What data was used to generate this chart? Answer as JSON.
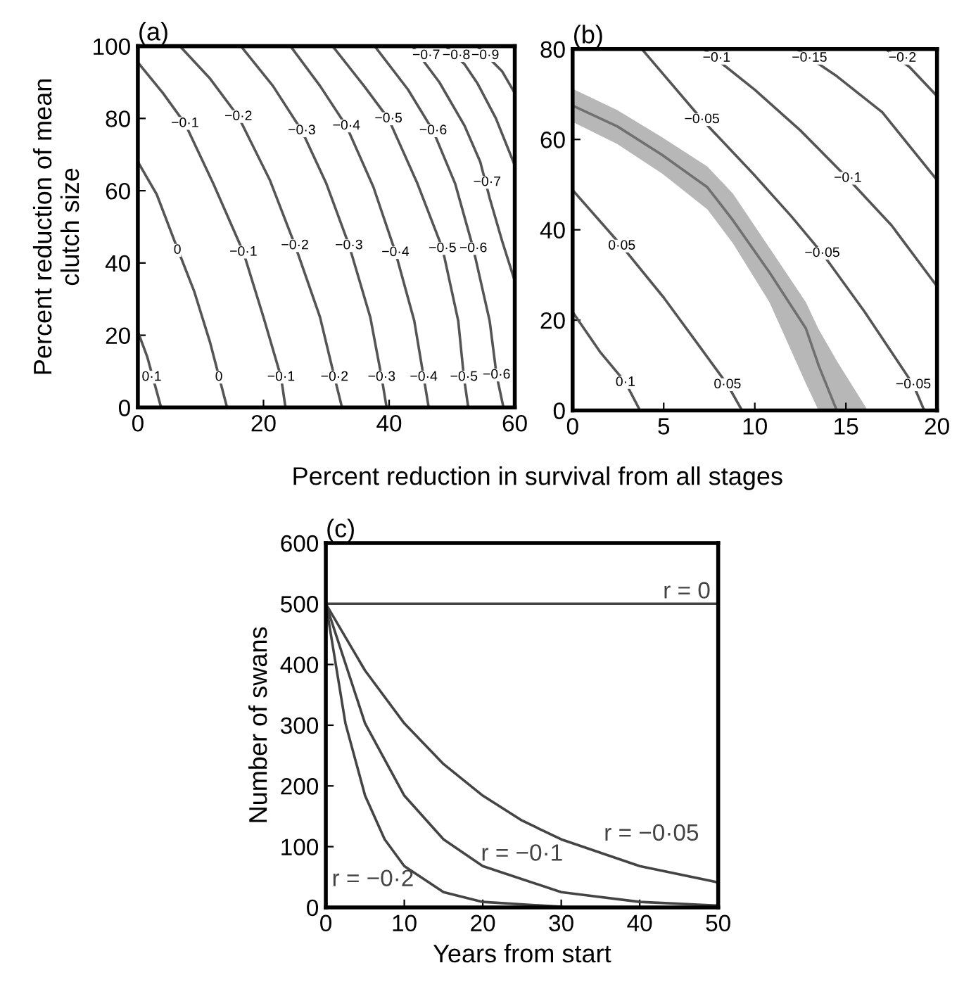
{
  "chart_data": [
    {
      "type": "line",
      "title": "(a)",
      "xlabel": "Percent reduction in survival from all stages",
      "ylabel": "Percent reduction of mean\nclutch size",
      "xlim": [
        0,
        60
      ],
      "ylim": [
        0,
        100
      ],
      "xticks": [
        0,
        20,
        40,
        60
      ],
      "yticks": [
        0,
        20,
        40,
        60,
        80,
        100
      ],
      "series": [
        {
          "color": "#555555",
          "x": [
            0,
            1.5,
            3.7
          ],
          "values": [
            21,
            14,
            0
          ]
        },
        {
          "color": "#555555",
          "x": [
            0,
            3,
            6.3,
            9,
            11.5,
            13,
            14.2
          ],
          "values": [
            68,
            59,
            44,
            32,
            18,
            8,
            0
          ]
        },
        {
          "color": "#555555",
          "x": [
            0,
            4,
            7.5,
            12,
            16.8,
            20,
            22.8,
            23.5
          ],
          "values": [
            95.5,
            87,
            78.6,
            62,
            43,
            25,
            8.4,
            0
          ]
        },
        {
          "color": "#555555",
          "x": [
            6.7,
            11.5,
            16,
            21,
            25,
            29,
            31.3,
            32.5
          ],
          "values": [
            100,
            91,
            80.5,
            63,
            45,
            25,
            8.4,
            0
          ]
        },
        {
          "color": "#555555",
          "x": [
            16.4,
            21.5,
            26.1,
            30,
            33.6,
            37,
            38.8,
            39.6
          ],
          "values": [
            100,
            89,
            76.6,
            62,
            45,
            25,
            8.4,
            0
          ]
        },
        {
          "color": "#555555",
          "x": [
            24.3,
            29,
            33.2,
            37.5,
            41,
            44,
            45.5,
            46.3
          ],
          "values": [
            100,
            89,
            77.9,
            61,
            43,
            24,
            8.4,
            0
          ]
        },
        {
          "color": "#555555",
          "x": [
            31,
            36,
            39.9,
            44.5,
            48.5,
            51,
            51.9,
            52.6
          ],
          "values": [
            100,
            89,
            79.9,
            62,
            44,
            24,
            8.4,
            0
          ]
        },
        {
          "color": "#555555",
          "x": [
            37.7,
            43,
            47,
            50.5,
            53.4,
            56,
            57.1,
            58.2
          ],
          "values": [
            100,
            88,
            76.6,
            62,
            44,
            24,
            9,
            0
          ]
        },
        {
          "color": "#555555",
          "x": [
            43.7,
            48,
            52,
            54.5,
            56,
            58,
            60
          ],
          "values": [
            100,
            90,
            78,
            68,
            58,
            46,
            35
          ]
        },
        {
          "color": "#555555",
          "x": [
            49,
            52,
            54.1,
            57,
            60
          ],
          "values": [
            100,
            95,
            89.6,
            80,
            67
          ]
        },
        {
          "color": "#555555",
          "x": [
            54,
            58,
            60
          ],
          "values": [
            100,
            93,
            87
          ]
        }
      ],
      "annotations": [
        {
          "text": "−0·7",
          "x": 45.9,
          "y": 97.4
        },
        {
          "text": "−0·8",
          "x": 50.7,
          "y": 97.4
        },
        {
          "text": "−0·9",
          "x": 55.3,
          "y": 97.4
        },
        {
          "text": "−0·1",
          "x": 7.5,
          "y": 78.6
        },
        {
          "text": "−0·2",
          "x": 16,
          "y": 80.5
        },
        {
          "text": "−0·3",
          "x": 26.1,
          "y": 76.6
        },
        {
          "text": "−0·4",
          "x": 33.2,
          "y": 77.9
        },
        {
          "text": "−0·5",
          "x": 39.9,
          "y": 79.9
        },
        {
          "text": "−0·6",
          "x": 47,
          "y": 76.6
        },
        {
          "text": "−0·7",
          "x": 55.6,
          "y": 62.3
        },
        {
          "text": "0",
          "x": 6.3,
          "y": 43.5
        },
        {
          "text": "−0·1",
          "x": 16.8,
          "y": 43
        },
        {
          "text": "−0·2",
          "x": 25,
          "y": 44.8
        },
        {
          "text": "−0·3",
          "x": 33.6,
          "y": 44.8
        },
        {
          "text": "−0·4",
          "x": 41,
          "y": 42.9
        },
        {
          "text": "−0·5",
          "x": 48.5,
          "y": 44
        },
        {
          "text": "−0·6",
          "x": 53.4,
          "y": 44
        },
        {
          "text": "0·1",
          "x": 2.2,
          "y": 8.4
        },
        {
          "text": "0",
          "x": 12.9,
          "y": 8.4
        },
        {
          "text": "−0·1",
          "x": 22.8,
          "y": 8.4
        },
        {
          "text": "−0·2",
          "x": 31.3,
          "y": 8.4
        },
        {
          "text": "−0·3",
          "x": 38.8,
          "y": 8.4
        },
        {
          "text": "−0·4",
          "x": 45.5,
          "y": 8.4
        },
        {
          "text": "−0·5",
          "x": 51.9,
          "y": 8.4
        },
        {
          "text": "−0·6",
          "x": 57.1,
          "y": 9
        }
      ]
    },
    {
      "type": "line",
      "title": "(b)",
      "xlim": [
        0,
        20
      ],
      "ylim": [
        0,
        80
      ],
      "xticks": [
        0,
        5,
        10,
        15,
        20
      ],
      "yticks": [
        0,
        20,
        40,
        60,
        80
      ],
      "series": [
        {
          "color": "#555555",
          "x": [
            0,
            1.5,
            2.9,
            3.7
          ],
          "values": [
            21.8,
            13,
            6.2,
            0
          ]
        },
        {
          "color": "#555555",
          "x": [
            0,
            2.7,
            5,
            7,
            8.5,
            9.3
          ],
          "values": [
            48.8,
            36.4,
            25,
            14,
            5.7,
            0
          ]
        },
        {
          "color": "#707070",
          "x": [
            0,
            2.45,
            4.9,
            7.4,
            8.8,
            10.8,
            12.8,
            13.5,
            14.5,
            16.2
          ],
          "values": [
            67.5,
            62.9,
            56.6,
            49.4,
            42.1,
            30.6,
            18.2,
            10,
            0,
            null
          ],
          "lower": [
            63.9,
            59,
            52.5,
            44.5,
            37,
            24,
            6,
            0,
            0,
            0
          ],
          "upper": [
            71.2,
            66.5,
            60.5,
            54,
            48,
            36,
            24,
            18,
            11,
            0
          ]
        },
        {
          "color": "#555555",
          "x": [
            3.8,
            7.1,
            10,
            12,
            13.7,
            16,
            18.7,
            19.3
          ],
          "values": [
            80,
            64.4,
            52,
            43,
            34.8,
            22,
            5.7,
            0
          ]
        },
        {
          "color": "#555555",
          "x": [
            7.2,
            10,
            12.5,
            15.1,
            17.5,
            20
          ],
          "values": [
            80,
            71,
            62,
            51.4,
            41,
            27.5
          ]
        },
        {
          "color": "#555555",
          "x": [
            12.3,
            14.5,
            17,
            20
          ],
          "values": [
            80,
            74,
            66,
            51
          ]
        },
        {
          "color": "#555555",
          "x": [
            17.2,
            18.5,
            20
          ],
          "values": [
            80,
            76,
            69.6
          ]
        }
      ],
      "annotations": [
        {
          "text": "−0·1",
          "x": 7.9,
          "y": 78
        },
        {
          "text": "−0·15",
          "x": 13,
          "y": 78
        },
        {
          "text": "−0·2",
          "x": 18.1,
          "y": 78
        },
        {
          "text": "−0·05",
          "x": 7.1,
          "y": 64.4
        },
        {
          "text": "−0·1",
          "x": 15.1,
          "y": 51.4
        },
        {
          "text": "0·05",
          "x": 2.7,
          "y": 36.4
        },
        {
          "text": "−0·05",
          "x": 13.7,
          "y": 34.8
        },
        {
          "text": "0·1",
          "x": 2.9,
          "y": 6.2
        },
        {
          "text": "0·05",
          "x": 8.5,
          "y": 5.7
        },
        {
          "text": "−0·05",
          "x": 18.7,
          "y": 5.7
        }
      ]
    },
    {
      "type": "line",
      "title": "(c)",
      "xlabel": "Years from start",
      "ylabel": "Number of swans",
      "xlim": [
        0,
        50
      ],
      "ylim": [
        0,
        600
      ],
      "xticks": [
        0,
        10,
        20,
        30,
        40,
        50
      ],
      "yticks": [
        0,
        100,
        200,
        300,
        400,
        500,
        600
      ],
      "series": [
        {
          "name": "r = 0",
          "color": "#444444",
          "x": [
            0,
            50
          ],
          "values": [
            500,
            500
          ]
        },
        {
          "name": "r = −0·05",
          "color": "#444444",
          "x": [
            0,
            5,
            10,
            15,
            20,
            25,
            30,
            40,
            50
          ],
          "values": [
            500,
            390,
            303,
            236,
            184,
            143,
            112,
            68,
            41
          ]
        },
        {
          "name": "r = −0·1",
          "color": "#444444",
          "x": [
            0,
            5,
            10,
            15,
            20,
            30,
            40,
            50
          ],
          "values": [
            500,
            303,
            184,
            112,
            68,
            25,
            9,
            3
          ]
        },
        {
          "name": "r = −0·2",
          "color": "#444444",
          "x": [
            0,
            2.5,
            5,
            7.5,
            10,
            15,
            20,
            30
          ],
          "values": [
            500,
            303,
            184,
            112,
            68,
            25,
            9,
            1
          ]
        }
      ]
    }
  ]
}
